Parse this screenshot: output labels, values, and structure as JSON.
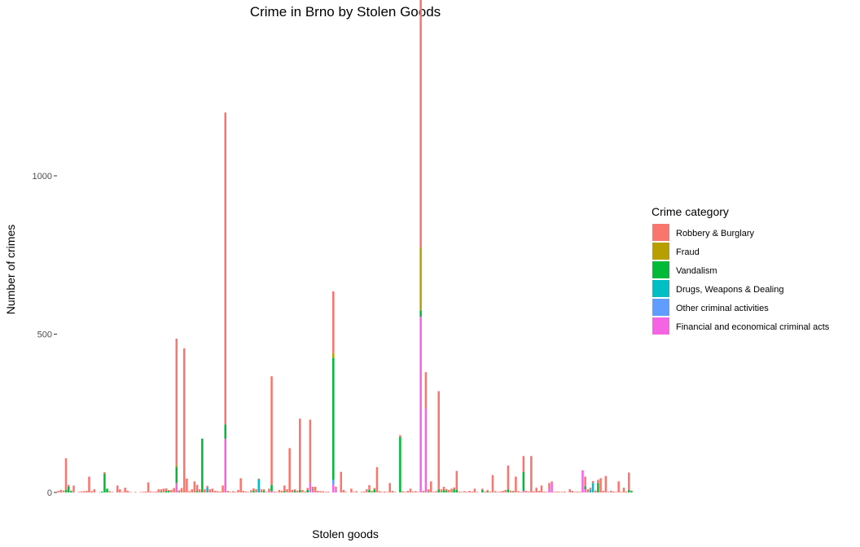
{
  "chart_data": {
    "type": "bar",
    "stacked": true,
    "title": "Crime in Brno by Stolen Goods",
    "xlabel": "Stolen goods",
    "ylabel": "Number of crimes",
    "ylim": [
      0,
      1400
    ],
    "yticks": [
      0,
      500,
      1000
    ],
    "ytick_labels": [
      "0",
      "500",
      "1000"
    ],
    "grid": false,
    "legend": {
      "title": "Crime category",
      "position": "right"
    },
    "series": [
      {
        "name": "Robbery & Burglary",
        "color": "#F8766D"
      },
      {
        "name": "Fraud",
        "color": "#B79F00"
      },
      {
        "name": "Vandalism",
        "color": "#00BA38"
      },
      {
        "name": "Drugs, Weapons & Dealing",
        "color": "#00BFC4"
      },
      {
        "name": "Other criminal activities",
        "color": "#619CFF"
      },
      {
        "name": "Financial and economical criminal acts",
        "color": "#F564E3"
      }
    ],
    "bars": [
      [
        5,
        0,
        0,
        0,
        0,
        0
      ],
      [
        8,
        0,
        0,
        0,
        0,
        0
      ],
      [
        4,
        0,
        0,
        0,
        0,
        2
      ],
      [
        100,
        0,
        8,
        0,
        0,
        0
      ],
      [
        6,
        0,
        18,
        0,
        0,
        0
      ],
      [
        2,
        0,
        4,
        0,
        0,
        0
      ],
      [
        22,
        0,
        0,
        0,
        0,
        0
      ],
      [
        0,
        0,
        0,
        0,
        0,
        0
      ],
      [
        2,
        0,
        0,
        0,
        0,
        0
      ],
      [
        3,
        0,
        0,
        0,
        0,
        0
      ],
      [
        4,
        0,
        0,
        0,
        0,
        0
      ],
      [
        5,
        0,
        0,
        0,
        0,
        0
      ],
      [
        50,
        0,
        0,
        0,
        0,
        0
      ],
      [
        4,
        0,
        0,
        0,
        0,
        0
      ],
      [
        10,
        0,
        0,
        0,
        0,
        0
      ],
      [
        0,
        0,
        0,
        0,
        0,
        0
      ],
      [
        1,
        0,
        0,
        0,
        0,
        0
      ],
      [
        0,
        0,
        3,
        0,
        0,
        0
      ],
      [
        4,
        0,
        60,
        0,
        0,
        0
      ],
      [
        0,
        0,
        12,
        0,
        0,
        0
      ],
      [
        4,
        0,
        0,
        0,
        0,
        0
      ],
      [
        2,
        0,
        0,
        0,
        0,
        0
      ],
      [
        0,
        0,
        0,
        0,
        0,
        0
      ],
      [
        22,
        0,
        0,
        0,
        0,
        0
      ],
      [
        10,
        0,
        0,
        0,
        0,
        0
      ],
      [
        2,
        0,
        0,
        0,
        0,
        0
      ],
      [
        15,
        0,
        0,
        0,
        0,
        0
      ],
      [
        5,
        0,
        0,
        0,
        0,
        0
      ],
      [
        2,
        0,
        0,
        0,
        0,
        0
      ],
      [
        0,
        0,
        0,
        0,
        0,
        0
      ],
      [
        2,
        0,
        0,
        0,
        0,
        0
      ],
      [
        0,
        0,
        0,
        0,
        0,
        0
      ],
      [
        1,
        0,
        0,
        0,
        0,
        0
      ],
      [
        2,
        0,
        0,
        0,
        0,
        0
      ],
      [
        3,
        0,
        0,
        0,
        0,
        0
      ],
      [
        32,
        0,
        0,
        0,
        0,
        0
      ],
      [
        3,
        0,
        0,
        0,
        0,
        0
      ],
      [
        2,
        0,
        0,
        0,
        0,
        0
      ],
      [
        3,
        0,
        0,
        0,
        0,
        0
      ],
      [
        10,
        0,
        0,
        0,
        0,
        0
      ],
      [
        7,
        0,
        3,
        0,
        0,
        0
      ],
      [
        12,
        0,
        0,
        0,
        0,
        0
      ],
      [
        8,
        0,
        5,
        0,
        0,
        0
      ],
      [
        4,
        0,
        4,
        0,
        0,
        0
      ],
      [
        8,
        0,
        0,
        0,
        0,
        0
      ],
      [
        14,
        0,
        0,
        0,
        0,
        0
      ],
      [
        398,
        8,
        50,
        0,
        0,
        30
      ],
      [
        5,
        0,
        2,
        0,
        0,
        0
      ],
      [
        14,
        0,
        0,
        0,
        0,
        0
      ],
      [
        455,
        0,
        0,
        0,
        0,
        0
      ],
      [
        44,
        0,
        0,
        0,
        0,
        0
      ],
      [
        4,
        0,
        0,
        0,
        0,
        0
      ],
      [
        10,
        0,
        0,
        0,
        0,
        0
      ],
      [
        35,
        0,
        0,
        0,
        0,
        0
      ],
      [
        20,
        0,
        4,
        0,
        0,
        0
      ],
      [
        10,
        0,
        0,
        0,
        0,
        0
      ],
      [
        0,
        0,
        170,
        0,
        0,
        0
      ],
      [
        10,
        0,
        0,
        0,
        0,
        0
      ],
      [
        6,
        0,
        0,
        15,
        0,
        0
      ],
      [
        10,
        0,
        0,
        0,
        0,
        0
      ],
      [
        12,
        0,
        0,
        0,
        0,
        0
      ],
      [
        5,
        0,
        0,
        0,
        0,
        0
      ],
      [
        4,
        0,
        0,
        0,
        0,
        0
      ],
      [
        3,
        0,
        0,
        0,
        0,
        0
      ],
      [
        22,
        0,
        0,
        0,
        0,
        0
      ],
      [
        985,
        0,
        45,
        0,
        0,
        170
      ],
      [
        5,
        0,
        0,
        0,
        0,
        0
      ],
      [
        2,
        0,
        0,
        0,
        0,
        0
      ],
      [
        4,
        0,
        0,
        0,
        0,
        0
      ],
      [
        2,
        0,
        0,
        0,
        0,
        0
      ],
      [
        8,
        0,
        0,
        0,
        0,
        0
      ],
      [
        45,
        0,
        0,
        0,
        0,
        0
      ],
      [
        5,
        0,
        0,
        0,
        0,
        0
      ],
      [
        3,
        0,
        0,
        0,
        0,
        0
      ],
      [
        2,
        0,
        0,
        0,
        0,
        0
      ],
      [
        7,
        0,
        0,
        0,
        0,
        0
      ],
      [
        8,
        0,
        5,
        0,
        0,
        0
      ],
      [
        10,
        0,
        0,
        0,
        0,
        0
      ],
      [
        2,
        0,
        2,
        40,
        0,
        0
      ],
      [
        10,
        0,
        0,
        0,
        0,
        0
      ],
      [
        5,
        0,
        5,
        0,
        0,
        0
      ],
      [
        2,
        0,
        0,
        0,
        0,
        0
      ],
      [
        12,
        0,
        0,
        0,
        0,
        0
      ],
      [
        343,
        0,
        20,
        0,
        0,
        4
      ],
      [
        3,
        0,
        0,
        0,
        0,
        0
      ],
      [
        2,
        0,
        0,
        0,
        0,
        0
      ],
      [
        8,
        0,
        0,
        0,
        0,
        0
      ],
      [
        5,
        0,
        0,
        0,
        0,
        0
      ],
      [
        18,
        0,
        4,
        0,
        0,
        0
      ],
      [
        10,
        0,
        0,
        0,
        0,
        0
      ],
      [
        140,
        0,
        0,
        0,
        0,
        0
      ],
      [
        8,
        0,
        0,
        0,
        0,
        0
      ],
      [
        5,
        0,
        5,
        0,
        0,
        0
      ],
      [
        6,
        0,
        0,
        0,
        0,
        0
      ],
      [
        225,
        0,
        8,
        0,
        0,
        0
      ],
      [
        8,
        0,
        0,
        0,
        0,
        0
      ],
      [
        3,
        0,
        0,
        0,
        0,
        0
      ],
      [
        6,
        0,
        8,
        0,
        0,
        0
      ],
      [
        200,
        0,
        0,
        0,
        0,
        30
      ],
      [
        8,
        0,
        2,
        0,
        0,
        8
      ],
      [
        18,
        0,
        0,
        0,
        0,
        0
      ],
      [
        5,
        0,
        0,
        0,
        0,
        0
      ],
      [
        4,
        0,
        0,
        0,
        0,
        0
      ],
      [
        4,
        0,
        0,
        0,
        0,
        0
      ],
      [
        2,
        0,
        0,
        0,
        0,
        0
      ],
      [
        3,
        0,
        0,
        0,
        0,
        0
      ],
      [
        0,
        0,
        0,
        0,
        0,
        0
      ],
      [
        195,
        15,
        385,
        0,
        15,
        25
      ],
      [
        8,
        0,
        0,
        0,
        0,
        10
      ],
      [
        0,
        0,
        0,
        0,
        0,
        0
      ],
      [
        65,
        0,
        0,
        0,
        0,
        0
      ],
      [
        8,
        0,
        0,
        0,
        0,
        0
      ],
      [
        2,
        0,
        0,
        0,
        0,
        0
      ],
      [
        0,
        0,
        0,
        0,
        0,
        0
      ],
      [
        12,
        0,
        0,
        0,
        0,
        0
      ],
      [
        2,
        0,
        0,
        0,
        0,
        0
      ],
      [
        4,
        0,
        0,
        0,
        0,
        0
      ],
      [
        0,
        0,
        0,
        0,
        0,
        0
      ],
      [
        2,
        0,
        0,
        0,
        0,
        0
      ],
      [
        3,
        0,
        0,
        0,
        0,
        0
      ],
      [
        10,
        0,
        0,
        0,
        0,
        0
      ],
      [
        15,
        0,
        8,
        0,
        0,
        0
      ],
      [
        5,
        0,
        0,
        0,
        0,
        0
      ],
      [
        4,
        0,
        10,
        0,
        0,
        0
      ],
      [
        80,
        0,
        0,
        0,
        0,
        0
      ],
      [
        4,
        0,
        0,
        0,
        0,
        0
      ],
      [
        2,
        0,
        0,
        0,
        0,
        0
      ],
      [
        3,
        0,
        0,
        0,
        0,
        0
      ],
      [
        2,
        0,
        0,
        0,
        0,
        0
      ],
      [
        30,
        0,
        0,
        0,
        0,
        0
      ],
      [
        5,
        0,
        0,
        0,
        0,
        0
      ],
      [
        2,
        0,
        0,
        0,
        0,
        0
      ],
      [
        0,
        0,
        0,
        0,
        0,
        0
      ],
      [
        6,
        0,
        175,
        0,
        0,
        0
      ],
      [
        4,
        0,
        0,
        0,
        0,
        0
      ],
      [
        2,
        0,
        0,
        0,
        0,
        0
      ],
      [
        5,
        0,
        0,
        0,
        0,
        0
      ],
      [
        12,
        0,
        0,
        0,
        0,
        0
      ],
      [
        3,
        0,
        0,
        0,
        0,
        0
      ],
      [
        4,
        0,
        0,
        0,
        0,
        0
      ],
      [
        2,
        0,
        0,
        0,
        0,
        0
      ],
      [
        845,
        200,
        20,
        0,
        0,
        555
      ],
      [
        5,
        0,
        0,
        0,
        0,
        0
      ],
      [
        115,
        0,
        0,
        0,
        0,
        265
      ],
      [
        8,
        0,
        2,
        0,
        0,
        0
      ],
      [
        35,
        0,
        0,
        0,
        0,
        0
      ],
      [
        2,
        0,
        0,
        0,
        0,
        0
      ],
      [
        4,
        0,
        0,
        0,
        0,
        0
      ],
      [
        310,
        0,
        10,
        0,
        0,
        0
      ],
      [
        8,
        0,
        2,
        0,
        0,
        0
      ],
      [
        10,
        0,
        8,
        0,
        0,
        0
      ],
      [
        6,
        0,
        5,
        0,
        0,
        0
      ],
      [
        8,
        0,
        0,
        0,
        0,
        0
      ],
      [
        12,
        0,
        0,
        0,
        0,
        0
      ],
      [
        6,
        0,
        10,
        0,
        0,
        0
      ],
      [
        60,
        0,
        8,
        0,
        0,
        0
      ],
      [
        3,
        0,
        0,
        0,
        0,
        0
      ],
      [
        2,
        0,
        0,
        0,
        0,
        0
      ],
      [
        4,
        0,
        0,
        0,
        0,
        0
      ],
      [
        2,
        0,
        0,
        0,
        0,
        0
      ],
      [
        5,
        0,
        0,
        0,
        0,
        0
      ],
      [
        3,
        0,
        0,
        0,
        0,
        0
      ],
      [
        12,
        0,
        0,
        0,
        0,
        0
      ],
      [
        2,
        0,
        0,
        0,
        0,
        0
      ],
      [
        0,
        0,
        0,
        0,
        0,
        0
      ],
      [
        4,
        0,
        8,
        0,
        0,
        0
      ],
      [
        3,
        0,
        0,
        0,
        0,
        0
      ],
      [
        5,
        0,
        3,
        0,
        0,
        0
      ],
      [
        3,
        0,
        0,
        0,
        0,
        0
      ],
      [
        55,
        0,
        0,
        0,
        0,
        0
      ],
      [
        4,
        0,
        0,
        0,
        0,
        0
      ],
      [
        2,
        0,
        0,
        0,
        0,
        0
      ],
      [
        3,
        0,
        0,
        0,
        0,
        0
      ],
      [
        5,
        0,
        0,
        0,
        0,
        0
      ],
      [
        8,
        0,
        0,
        0,
        0,
        0
      ],
      [
        75,
        0,
        10,
        0,
        0,
        0
      ],
      [
        6,
        0,
        0,
        0,
        0,
        0
      ],
      [
        3,
        0,
        2,
        0,
        0,
        0
      ],
      [
        50,
        0,
        0,
        0,
        0,
        0
      ],
      [
        4,
        0,
        0,
        0,
        0,
        0
      ],
      [
        2,
        0,
        0,
        0,
        0,
        0
      ],
      [
        50,
        0,
        60,
        0,
        0,
        5
      ],
      [
        5,
        0,
        0,
        0,
        0,
        0
      ],
      [
        3,
        0,
        0,
        0,
        0,
        0
      ],
      [
        115,
        0,
        0,
        0,
        0,
        0
      ],
      [
        4,
        0,
        0,
        0,
        0,
        0
      ],
      [
        15,
        0,
        0,
        0,
        0,
        0
      ],
      [
        5,
        0,
        0,
        0,
        0,
        0
      ],
      [
        22,
        0,
        0,
        0,
        0,
        0
      ],
      [
        3,
        0,
        0,
        0,
        0,
        0
      ],
      [
        2,
        0,
        0,
        0,
        0,
        0
      ],
      [
        20,
        0,
        0,
        0,
        0,
        10
      ],
      [
        5,
        0,
        0,
        0,
        0,
        30
      ],
      [
        2,
        0,
        0,
        0,
        0,
        0
      ],
      [
        3,
        0,
        0,
        0,
        0,
        0
      ],
      [
        2,
        0,
        0,
        0,
        0,
        0
      ],
      [
        2,
        0,
        0,
        0,
        0,
        0
      ],
      [
        3,
        0,
        0,
        0,
        0,
        0
      ],
      [
        0,
        0,
        0,
        0,
        0,
        0
      ],
      [
        10,
        0,
        0,
        0,
        0,
        0
      ],
      [
        5,
        0,
        0,
        0,
        0,
        0
      ],
      [
        2,
        0,
        0,
        0,
        0,
        0
      ],
      [
        3,
        0,
        0,
        0,
        0,
        0
      ],
      [
        2,
        0,
        0,
        0,
        0,
        0
      ],
      [
        0,
        0,
        0,
        0,
        0,
        70
      ],
      [
        30,
        0,
        10,
        0,
        0,
        10
      ],
      [
        10,
        0,
        0,
        0,
        0,
        0
      ],
      [
        5,
        0,
        0,
        10,
        0,
        0
      ],
      [
        6,
        0,
        0,
        30,
        0,
        0
      ],
      [
        6,
        0,
        0,
        0,
        0,
        0
      ],
      [
        10,
        0,
        30,
        0,
        0,
        0
      ],
      [
        45,
        0,
        0,
        0,
        0,
        0
      ],
      [
        5,
        0,
        0,
        0,
        0,
        0
      ],
      [
        52,
        0,
        0,
        0,
        0,
        0
      ],
      [
        2,
        0,
        0,
        0,
        0,
        0
      ],
      [
        5,
        0,
        0,
        0,
        0,
        0
      ],
      [
        3,
        0,
        0,
        0,
        0,
        0
      ],
      [
        2,
        0,
        0,
        0,
        0,
        0
      ],
      [
        35,
        0,
        0,
        0,
        0,
        0
      ],
      [
        2,
        0,
        0,
        0,
        0,
        0
      ],
      [
        15,
        0,
        0,
        0,
        0,
        0
      ],
      [
        3,
        0,
        0,
        0,
        0,
        0
      ],
      [
        55,
        0,
        8,
        0,
        0,
        0
      ],
      [
        2,
        0,
        4,
        0,
        0,
        0
      ]
    ]
  }
}
